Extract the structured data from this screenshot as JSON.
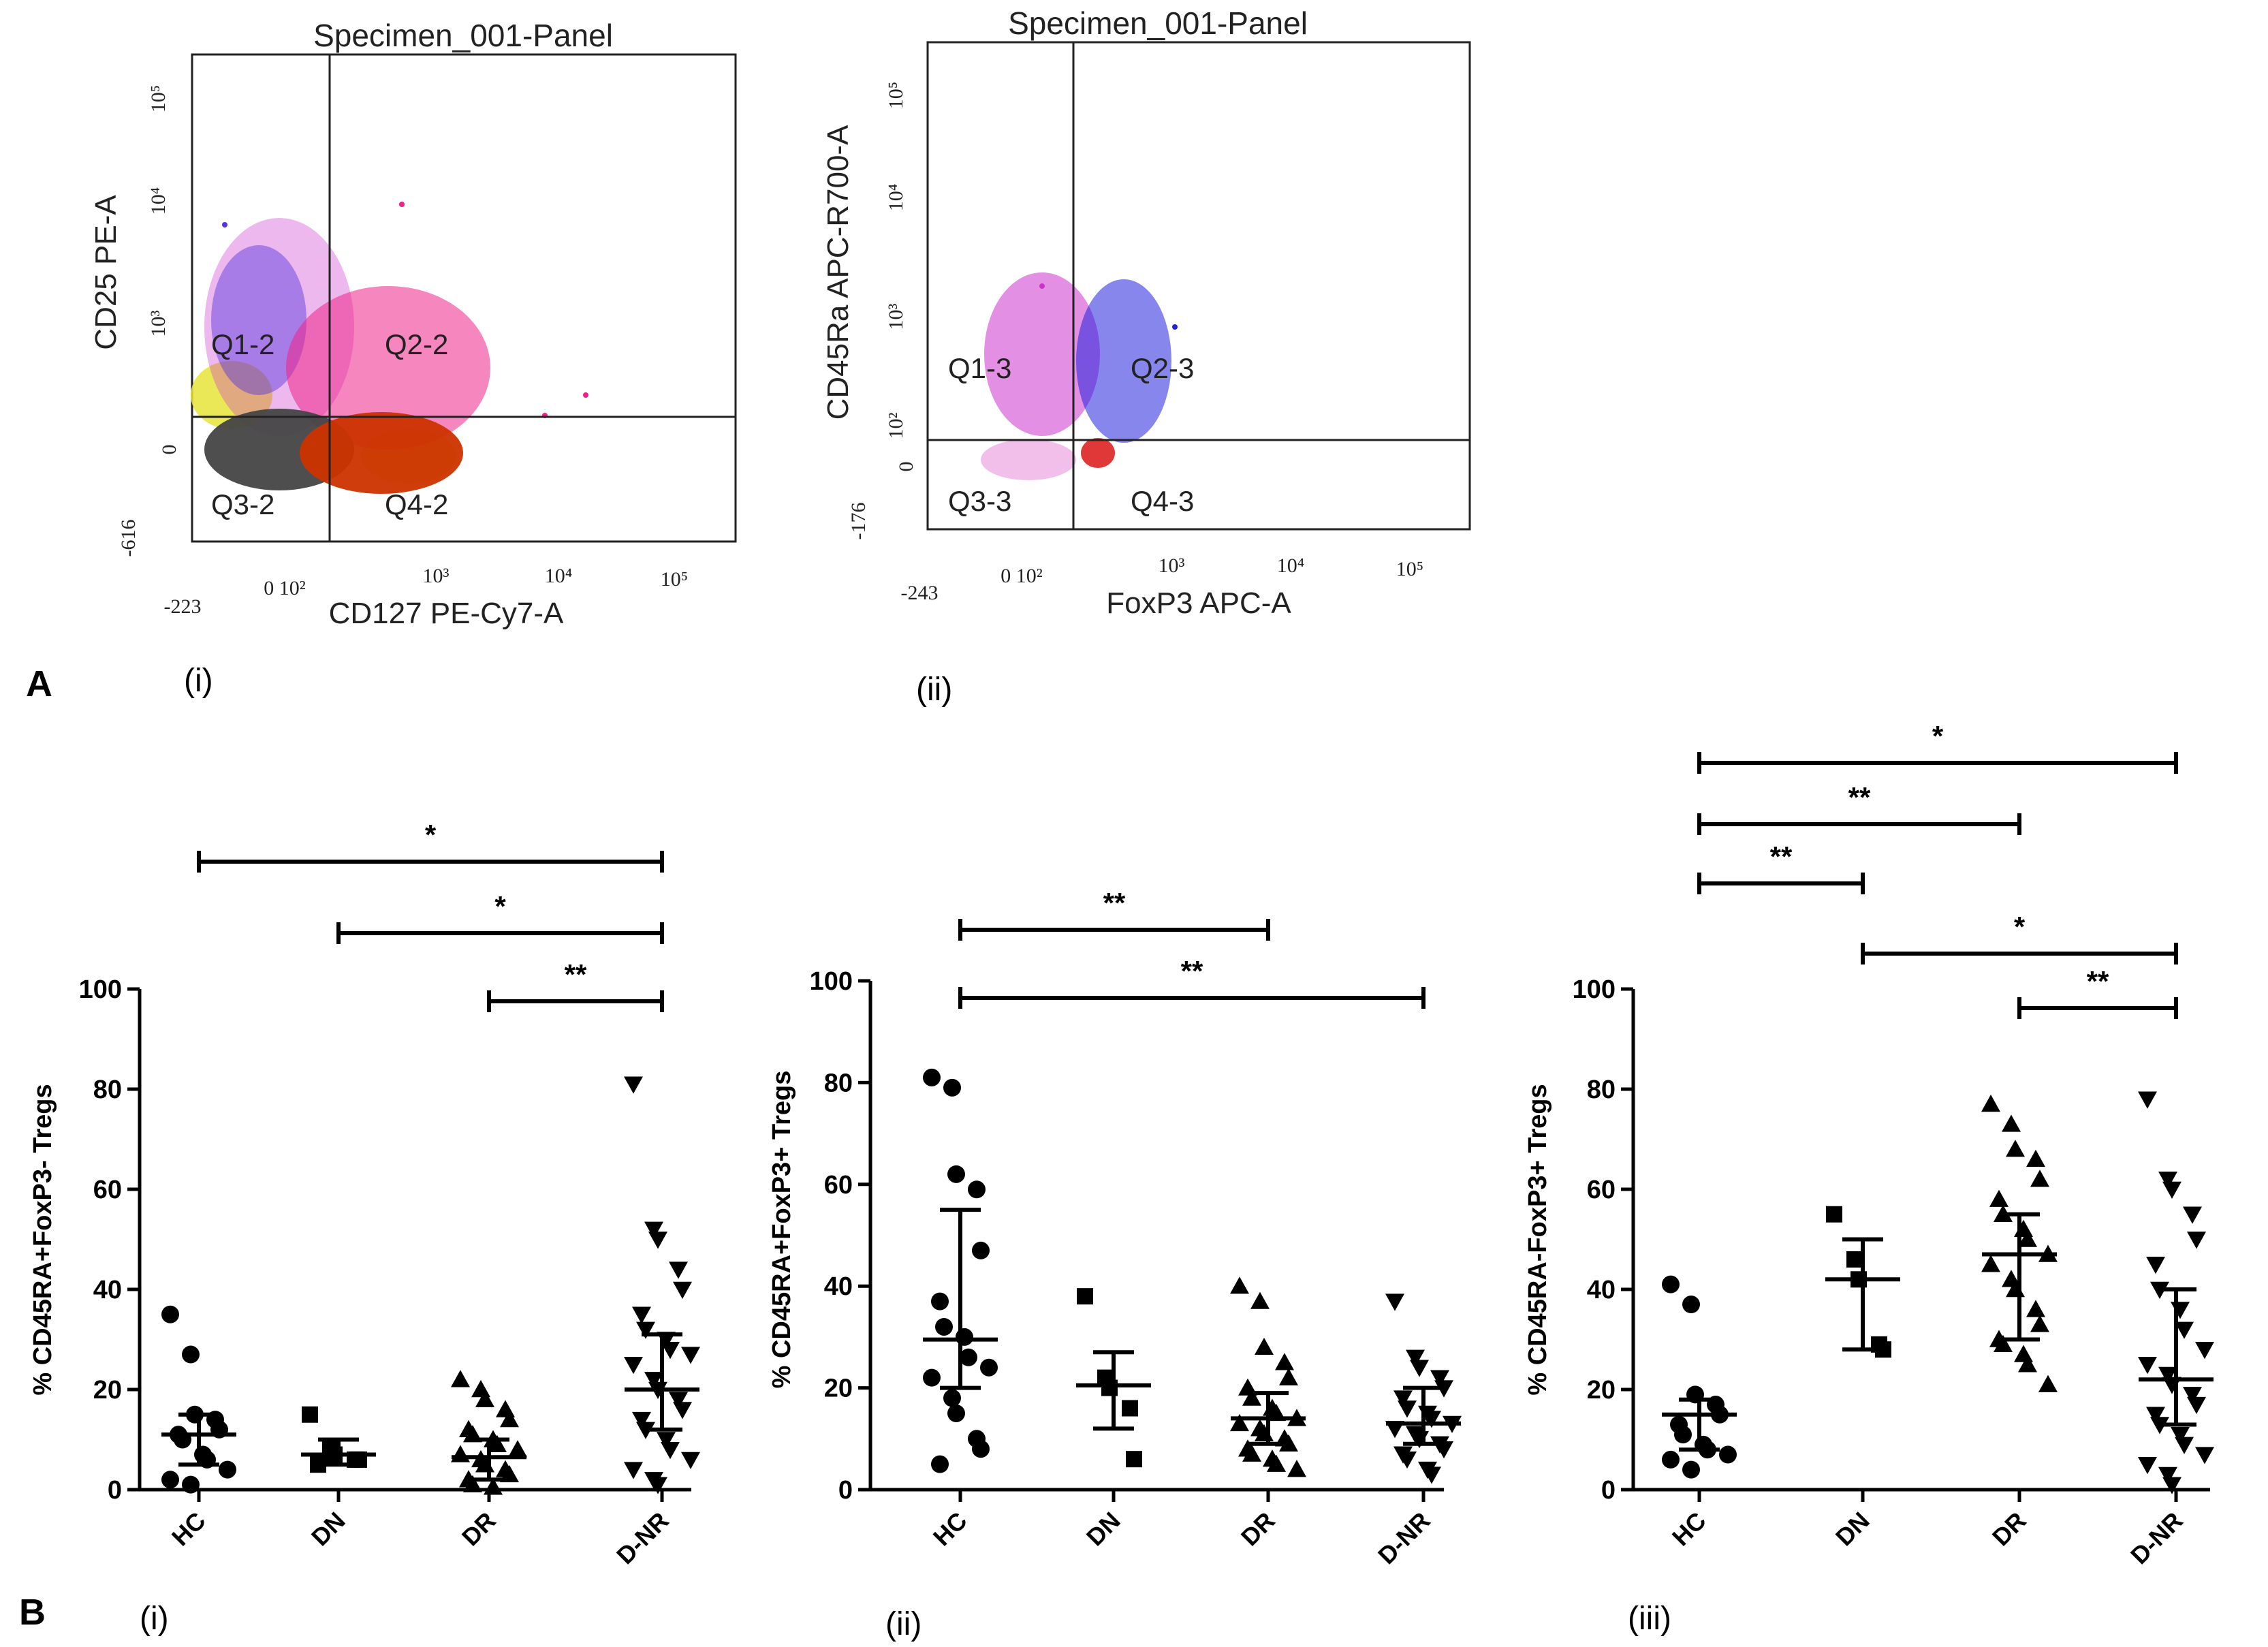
{
  "figure": {
    "panel_a": {
      "letter": "A",
      "sub_i": "(i)",
      "sub_ii": "(ii)"
    },
    "panel_b": {
      "letter": "B",
      "sub_i": "(i)",
      "sub_ii": "(ii)",
      "sub_iii": "(iii)"
    }
  },
  "flow_plots": [
    {
      "title": "Specimen_001-Panel",
      "xlabel": "CD127 PE-Cy7-A",
      "ylabel": "CD25 PE-A",
      "quadrants": [
        "Q1-2",
        "Q2-2",
        "Q3-2",
        "Q4-2"
      ],
      "x_ticks": [
        "-223",
        "0 10²",
        "10³",
        "10⁴",
        "10⁵"
      ],
      "y_ticks": [
        "-616",
        "0",
        "10³",
        "10⁴",
        "10⁵"
      ]
    },
    {
      "title": "Specimen_001-Panel",
      "xlabel": "FoxP3 APC-A",
      "ylabel": "CD45Ra APC-R700-A",
      "quadrants": [
        "Q1-3",
        "Q2-3",
        "Q3-3",
        "Q4-3"
      ],
      "x_ticks": [
        "-243",
        "0 10²",
        "10³",
        "10⁴",
        "10⁵"
      ],
      "y_ticks": [
        "-176",
        "0",
        "10²",
        "10³",
        "10⁴",
        "10⁵"
      ]
    }
  ],
  "chart_data": [
    {
      "type": "scatter",
      "panel": "B(i)",
      "ylabel": "% CD45RA+FoxP3- Tregs",
      "ylim": [
        0,
        100
      ],
      "yticks": [
        0,
        20,
        40,
        60,
        80,
        100
      ],
      "categories": [
        "HC",
        "DN",
        "DR",
        "D-NR"
      ],
      "markers": [
        "circle",
        "square",
        "triangle-up",
        "triangle-down"
      ],
      "medians": [
        11,
        7,
        6.5,
        20
      ],
      "errors": [
        [
          5,
          15
        ],
        [
          5,
          10
        ],
        [
          2,
          10
        ],
        [
          12,
          31
        ]
      ],
      "points": [
        [
          35,
          27,
          15,
          14,
          12,
          11,
          10,
          7,
          6,
          4,
          2,
          1
        ],
        [
          15,
          8,
          7,
          6,
          6,
          5
        ],
        [
          22,
          20,
          18,
          16,
          14,
          12,
          11,
          10,
          9,
          8,
          7,
          6,
          5,
          4,
          3,
          2,
          1,
          0.5
        ],
        [
          81,
          52,
          50,
          44,
          40,
          35,
          32,
          30,
          28,
          27,
          25,
          22,
          20,
          18,
          16,
          14,
          12,
          10,
          8,
          6,
          4,
          2,
          1
        ]
      ],
      "significance": [
        {
          "from": 0,
          "to": 3,
          "label": "*"
        },
        {
          "from": 1,
          "to": 3,
          "label": "*"
        },
        {
          "from": 2,
          "to": 3,
          "label": "**"
        }
      ]
    },
    {
      "type": "scatter",
      "panel": "B(ii)",
      "ylabel": "% CD45RA+FoxP3+ Tregs",
      "ylim": [
        0,
        100
      ],
      "yticks": [
        0,
        20,
        40,
        60,
        80,
        100
      ],
      "categories": [
        "HC",
        "DN",
        "DR",
        "D-NR"
      ],
      "markers": [
        "circle",
        "square",
        "triangle-up",
        "triangle-down"
      ],
      "medians": [
        29.5,
        20.5,
        14,
        13
      ],
      "errors": [
        [
          20,
          55
        ],
        [
          12,
          27
        ],
        [
          9,
          19
        ],
        [
          9,
          20
        ]
      ],
      "points": [
        [
          81,
          79,
          62,
          59,
          47,
          37,
          32,
          30,
          26,
          24,
          22,
          18,
          15,
          10,
          8,
          5
        ],
        [
          38,
          22,
          20,
          16,
          6
        ],
        [
          40,
          37,
          28,
          25,
          22,
          20,
          18,
          16,
          15,
          14,
          13,
          12,
          11,
          10,
          9,
          8,
          7,
          6,
          5,
          4
        ],
        [
          37,
          26,
          24,
          22,
          20,
          18,
          16,
          15,
          14,
          13,
          12,
          11,
          10,
          9,
          8,
          7,
          6,
          4,
          3
        ]
      ],
      "significance": [
        {
          "from": 0,
          "to": 2,
          "label": "**"
        },
        {
          "from": 0,
          "to": 3,
          "label": "**"
        }
      ]
    },
    {
      "type": "scatter",
      "panel": "B(iii)",
      "ylabel": "% CD45RA-FoxP3+ Tregs",
      "ylim": [
        0,
        100
      ],
      "yticks": [
        0,
        20,
        40,
        60,
        80,
        100
      ],
      "categories": [
        "HC",
        "DN",
        "DR",
        "D-NR"
      ],
      "markers": [
        "circle",
        "square",
        "triangle-up",
        "triangle-down"
      ],
      "medians": [
        15,
        42,
        47,
        22
      ],
      "errors": [
        [
          8,
          18
        ],
        [
          28,
          50
        ],
        [
          30,
          55
        ],
        [
          13,
          40
        ]
      ],
      "points": [
        [
          41,
          37,
          19,
          17,
          15,
          13,
          11,
          9,
          8,
          7,
          6,
          4
        ],
        [
          55,
          46,
          42,
          29,
          28
        ],
        [
          77,
          73,
          68,
          66,
          62,
          58,
          55,
          52,
          50,
          47,
          45,
          42,
          40,
          36,
          33,
          30,
          29,
          27,
          25,
          21
        ],
        [
          78,
          62,
          60,
          55,
          50,
          45,
          40,
          36,
          32,
          28,
          25,
          23,
          21,
          19,
          17,
          15,
          13,
          11,
          9,
          7,
          5,
          3,
          1
        ]
      ],
      "significance": [
        {
          "from": 0,
          "to": 3,
          "label": "*"
        },
        {
          "from": 0,
          "to": 2,
          "label": "**"
        },
        {
          "from": 0,
          "to": 1,
          "label": "**"
        },
        {
          "from": 1,
          "to": 3,
          "label": "*"
        },
        {
          "from": 2,
          "to": 3,
          "label": "**"
        }
      ]
    }
  ]
}
